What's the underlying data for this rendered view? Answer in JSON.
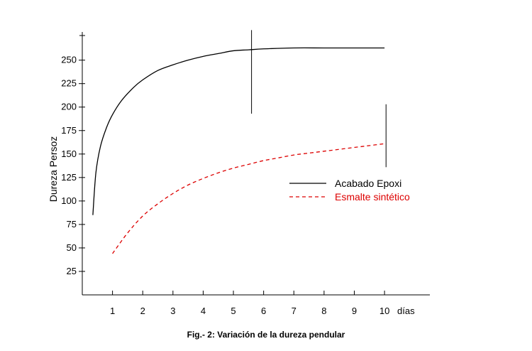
{
  "caption": "Fig.- 2: Variación de la dureza pendular",
  "chart_data": {
    "type": "line",
    "ylabel": "Dureza Persoz",
    "xlabel": "días",
    "xlim": [
      0,
      11.5
    ],
    "ylim": [
      0,
      280
    ],
    "x_ticks": [
      1,
      2,
      3,
      4,
      5,
      6,
      7,
      8,
      9,
      10
    ],
    "y_ticks": [
      25,
      50,
      75,
      100,
      125,
      150,
      175,
      200,
      225,
      250
    ],
    "legend_position": "right-center",
    "series": [
      {
        "name": "Acabado Epoxi",
        "color": "#000000",
        "dash": "solid",
        "x": [
          0.35,
          0.45,
          0.6,
          0.8,
          1.0,
          1.3,
          1.7,
          2.0,
          2.5,
          3.0,
          3.5,
          4.0,
          4.5,
          5.0,
          5.5,
          6.0,
          7.0,
          8.0,
          9.0,
          10.0
        ],
        "y": [
          85,
          130,
          158,
          178,
          192,
          207,
          221,
          229,
          239,
          245,
          250,
          254,
          257,
          260,
          261,
          262,
          263,
          263,
          263,
          263
        ]
      },
      {
        "name": "Esmalte sintético",
        "color": "#dd0000",
        "dash": "dashed",
        "x": [
          1.0,
          1.5,
          2.0,
          2.5,
          3.0,
          3.5,
          4.0,
          4.5,
          5.0,
          5.5,
          6.0,
          6.5,
          7.0,
          7.5,
          8.0,
          8.5,
          9.0,
          9.5,
          10.0
        ],
        "y": [
          44,
          66,
          84,
          97,
          108,
          117,
          124,
          130,
          135,
          139,
          143,
          146,
          149,
          151,
          153,
          155,
          157,
          159,
          161
        ]
      }
    ],
    "error_bars": [
      {
        "x": 5.6,
        "y_low": 193,
        "y_high": 282
      },
      {
        "x": 10.05,
        "y_low": 136,
        "y_high": 203
      }
    ]
  }
}
